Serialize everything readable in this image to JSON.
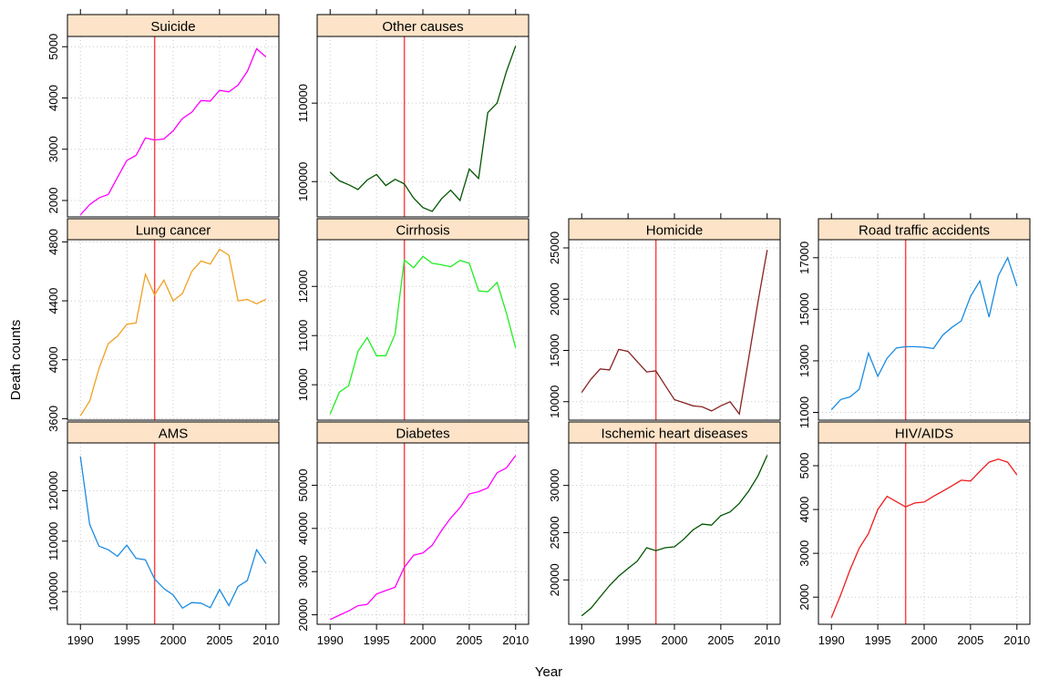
{
  "figure": {
    "xlabel": "Year",
    "ylabel": "Death counts",
    "reference_year": 1998,
    "reference_line_color": "#ff4444",
    "strip_color": "#fde3c8",
    "grid": true
  },
  "chart_data": [
    {
      "type": "line",
      "title": "Suicide",
      "color": "#ff00ff",
      "xlim": [
        1988.6,
        2011.4
      ],
      "ylim": [
        1680,
        5200
      ],
      "xticks": [
        1990,
        1995,
        2000,
        2005,
        2010
      ],
      "yticks": [
        2000,
        3000,
        4000,
        5000
      ],
      "x": [
        1990,
        1991,
        1992,
        1993,
        1994,
        1995,
        1996,
        1997,
        1998,
        1999,
        2000,
        2001,
        2002,
        2003,
        2004,
        2005,
        2006,
        2007,
        2008,
        2009,
        2010
      ],
      "y": [
        1720,
        1920,
        2050,
        2120,
        2450,
        2780,
        2880,
        3220,
        3180,
        3200,
        3360,
        3600,
        3720,
        3950,
        3940,
        4150,
        4120,
        4250,
        4520,
        4960,
        4800
      ]
    },
    {
      "type": "line",
      "title": "Other causes",
      "color": "#005500",
      "xlim": [
        1988.6,
        2011.4
      ],
      "ylim": [
        95500,
        118500
      ],
      "xticks": [
        1990,
        1995,
        2000,
        2005,
        2010
      ],
      "yticks": [
        100000,
        110000
      ],
      "x": [
        1990,
        1991,
        1992,
        1993,
        1994,
        1995,
        1996,
        1997,
        1998,
        1999,
        2000,
        2001,
        2002,
        2003,
        2004,
        2005,
        2006,
        2007,
        2008,
        2009,
        2010
      ],
      "y": [
        101200,
        100100,
        99600,
        99000,
        100200,
        100900,
        99500,
        100300,
        99700,
        97900,
        96700,
        96200,
        97800,
        98900,
        97600,
        101600,
        100400,
        108800,
        110000,
        114000,
        117300
      ]
    },
    {
      "type": "line",
      "title": "Lung cancer",
      "color": "#f0a020",
      "xlim": [
        1988.6,
        2011.4
      ],
      "ylim": [
        3590,
        4815
      ],
      "xticks": [
        1990,
        1995,
        2000,
        2005,
        2010
      ],
      "yticks": [
        3600,
        4000,
        4400,
        4800
      ],
      "x": [
        1990,
        1991,
        1992,
        1993,
        1994,
        1995,
        1996,
        1997,
        1998,
        1999,
        2000,
        2001,
        2002,
        2003,
        2004,
        2005,
        2006,
        2007,
        2008,
        2009,
        2010
      ],
      "y": [
        3620,
        3720,
        3940,
        4110,
        4160,
        4240,
        4250,
        4580,
        4440,
        4540,
        4400,
        4450,
        4600,
        4670,
        4650,
        4750,
        4710,
        4400,
        4410,
        4380,
        4410
      ]
    },
    {
      "type": "line",
      "title": "Cirrhosis",
      "color": "#22ee22",
      "xlim": [
        1988.6,
        2011.4
      ],
      "ylim": [
        9280,
        12950
      ],
      "xticks": [
        1990,
        1995,
        2000,
        2005,
        2010
      ],
      "yticks": [
        10000,
        11000,
        12000
      ],
      "x": [
        1990,
        1991,
        1992,
        1993,
        1994,
        1995,
        1996,
        1997,
        1998,
        1999,
        2000,
        2001,
        2002,
        2003,
        2004,
        2005,
        2006,
        2007,
        2008,
        2009,
        2010
      ],
      "y": [
        9400,
        9850,
        9980,
        10680,
        10960,
        10590,
        10590,
        11030,
        12540,
        12380,
        12610,
        12470,
        12440,
        12400,
        12530,
        12470,
        11910,
        11890,
        12080,
        11460,
        10750
      ]
    },
    {
      "type": "line",
      "title": "Homicide",
      "color": "#882222",
      "xlim": [
        1988.6,
        2011.4
      ],
      "ylim": [
        8200,
        25800
      ],
      "xticks": [
        1990,
        1995,
        2000,
        2005,
        2010
      ],
      "yticks": [
        10000,
        15000,
        20000,
        25000
      ],
      "x": [
        1990,
        1991,
        1992,
        1993,
        1994,
        1995,
        1996,
        1997,
        1998,
        1999,
        2000,
        2001,
        2002,
        2003,
        2004,
        2005,
        2006,
        2007,
        2008,
        2009,
        2010
      ],
      "y": [
        10900,
        12200,
        13200,
        13100,
        15100,
        14900,
        13900,
        12900,
        13000,
        11600,
        10200,
        9900,
        9600,
        9500,
        9100,
        9600,
        10000,
        8800,
        14200,
        19700,
        24800
      ]
    },
    {
      "type": "line",
      "title": "Road traffic accidents",
      "color": "#1b8be0",
      "xlim": [
        1988.6,
        2011.4
      ],
      "ylim": [
        10700,
        17700
      ],
      "xticks": [
        1990,
        1995,
        2000,
        2005,
        2010
      ],
      "yticks": [
        11000,
        13000,
        15000,
        17000
      ],
      "x": [
        1990,
        1991,
        1992,
        1993,
        1994,
        1995,
        1996,
        1997,
        1998,
        1999,
        2000,
        2001,
        2002,
        2003,
        2004,
        2005,
        2006,
        2007,
        2008,
        2009,
        2010
      ],
      "y": [
        11100,
        11500,
        11600,
        11900,
        13300,
        12400,
        13100,
        13500,
        13550,
        13550,
        13530,
        13480,
        14000,
        14300,
        14550,
        15500,
        16100,
        14700,
        16300,
        17000,
        15900
      ]
    },
    {
      "type": "line",
      "title": "AMS",
      "color": "#1b8be0",
      "xlim": [
        1988.6,
        2011.4
      ],
      "ylim": [
        93500,
        129500
      ],
      "xticks": [
        1990,
        1995,
        2000,
        2005,
        2010
      ],
      "yticks": [
        100000,
        110000,
        120000
      ],
      "x": [
        1990,
        1991,
        1992,
        1993,
        1994,
        1995,
        1996,
        1997,
        1998,
        1999,
        2000,
        2001,
        2002,
        2003,
        2004,
        2005,
        2006,
        2007,
        2008,
        2009,
        2010
      ],
      "y": [
        126800,
        113300,
        109000,
        108300,
        107000,
        109200,
        106600,
        106300,
        102500,
        100600,
        99300,
        96700,
        97800,
        97700,
        96800,
        100400,
        97200,
        101000,
        102200,
        108300,
        105600
      ]
    },
    {
      "type": "line",
      "title": "Diabetes",
      "color": "#ff00ff",
      "xlim": [
        1988.6,
        2011.4
      ],
      "ylim": [
        17800,
        59800
      ],
      "xticks": [
        1990,
        1995,
        2000,
        2005,
        2010
      ],
      "yticks": [
        20000,
        30000,
        40000,
        50000
      ],
      "x": [
        1990,
        1991,
        1992,
        1993,
        1994,
        1995,
        1996,
        1997,
        1998,
        1999,
        2000,
        2001,
        2002,
        2003,
        2004,
        2005,
        2006,
        2007,
        2008,
        2009,
        2010
      ],
      "y": [
        18900,
        19900,
        20900,
        22100,
        22400,
        24800,
        25600,
        26400,
        31000,
        33800,
        34300,
        36100,
        39500,
        42400,
        44800,
        48000,
        48500,
        49400,
        52900,
        54000,
        56900
      ]
    },
    {
      "type": "line",
      "title": "Ischemic heart diseases",
      "color": "#005500",
      "xlim": [
        1988.6,
        2011.4
      ],
      "ylim": [
        15300,
        34500
      ],
      "xticks": [
        1990,
        1995,
        2000,
        2005,
        2010
      ],
      "yticks": [
        20000,
        25000,
        30000
      ],
      "x": [
        1990,
        1991,
        1992,
        1993,
        1994,
        1995,
        1996,
        1997,
        1998,
        1999,
        2000,
        2001,
        2002,
        2003,
        2004,
        2005,
        2006,
        2007,
        2008,
        2009,
        2010
      ],
      "y": [
        16200,
        17000,
        18200,
        19400,
        20400,
        21200,
        22000,
        23400,
        23100,
        23400,
        23500,
        24300,
        25300,
        25900,
        25800,
        26800,
        27200,
        28100,
        29400,
        31000,
        33200
      ]
    },
    {
      "type": "line",
      "title": "HIV/AIDS",
      "color": "#ee1c1c",
      "xlim": [
        1988.6,
        2011.4
      ],
      "ylim": [
        1380,
        5520
      ],
      "xticks": [
        1990,
        1995,
        2000,
        2005,
        2010
      ],
      "yticks": [
        2000,
        3000,
        4000,
        5000
      ],
      "x": [
        1990,
        1991,
        1992,
        1993,
        1994,
        1995,
        1996,
        1997,
        1998,
        1999,
        2000,
        2001,
        2002,
        2003,
        2004,
        2005,
        2006,
        2007,
        2008,
        2009,
        2010
      ],
      "y": [
        1530,
        2050,
        2620,
        3120,
        3450,
        4000,
        4300,
        4180,
        4060,
        4150,
        4170,
        4300,
        4420,
        4540,
        4670,
        4650,
        4870,
        5080,
        5150,
        5080,
        4790
      ]
    }
  ]
}
